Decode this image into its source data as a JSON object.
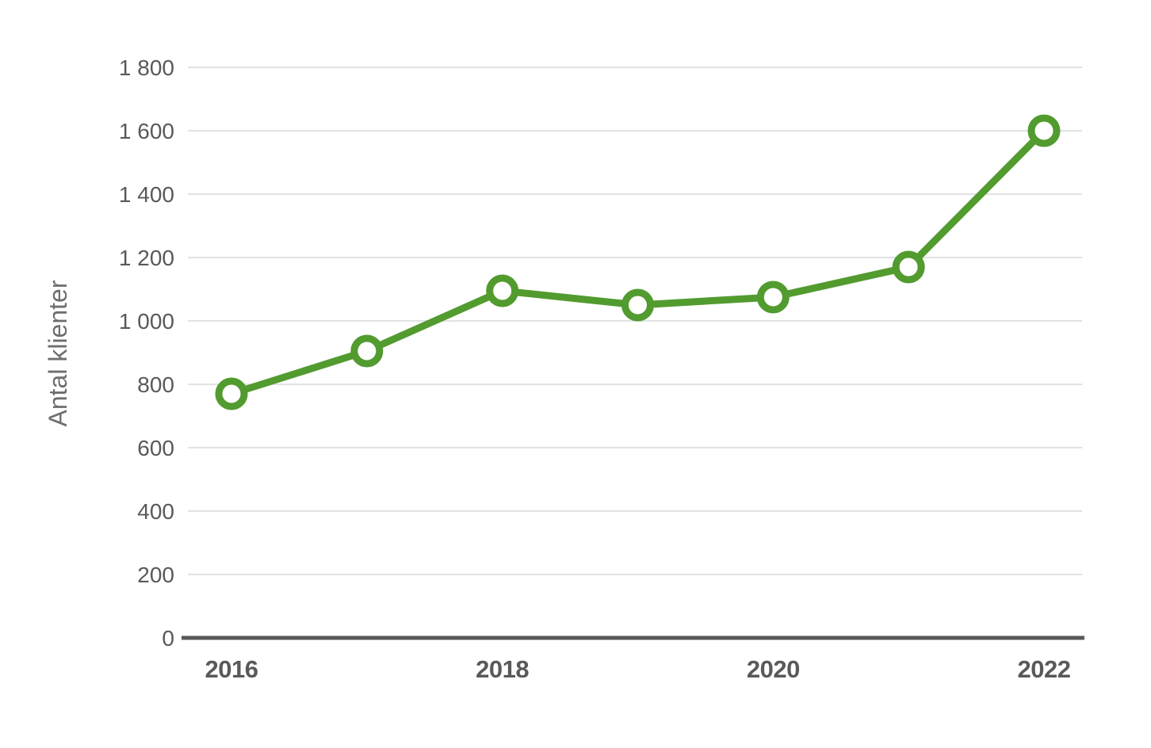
{
  "chart_data": {
    "type": "line",
    "title": "",
    "xlabel": "",
    "ylabel": "Antal klienter",
    "x": [
      2016,
      2017,
      2018,
      2019,
      2020,
      2021,
      2022
    ],
    "series": [
      {
        "name": "Antal klienter",
        "values": [
          770,
          905,
          1095,
          1050,
          1075,
          1170,
          1600
        ]
      }
    ],
    "ylim": [
      0,
      1800
    ],
    "ytick_step": 200,
    "ytick_labels": [
      "0",
      "200",
      "400",
      "600",
      "800",
      "1 000",
      "1 200",
      "1 400",
      "1 600",
      "1 800"
    ],
    "xtick_labels_shown": [
      "2016",
      "2018",
      "2020",
      "2022"
    ],
    "grid": "horizontal",
    "legend": "none",
    "marker": "open-circle",
    "colors": {
      "series": "#529B2F",
      "marker_fill": "#FFFFFF",
      "gridline": "#E0E2E5",
      "axis_line": "#595959",
      "tick_text": "#595959",
      "axis_title_text": "#6E6E6E"
    }
  }
}
